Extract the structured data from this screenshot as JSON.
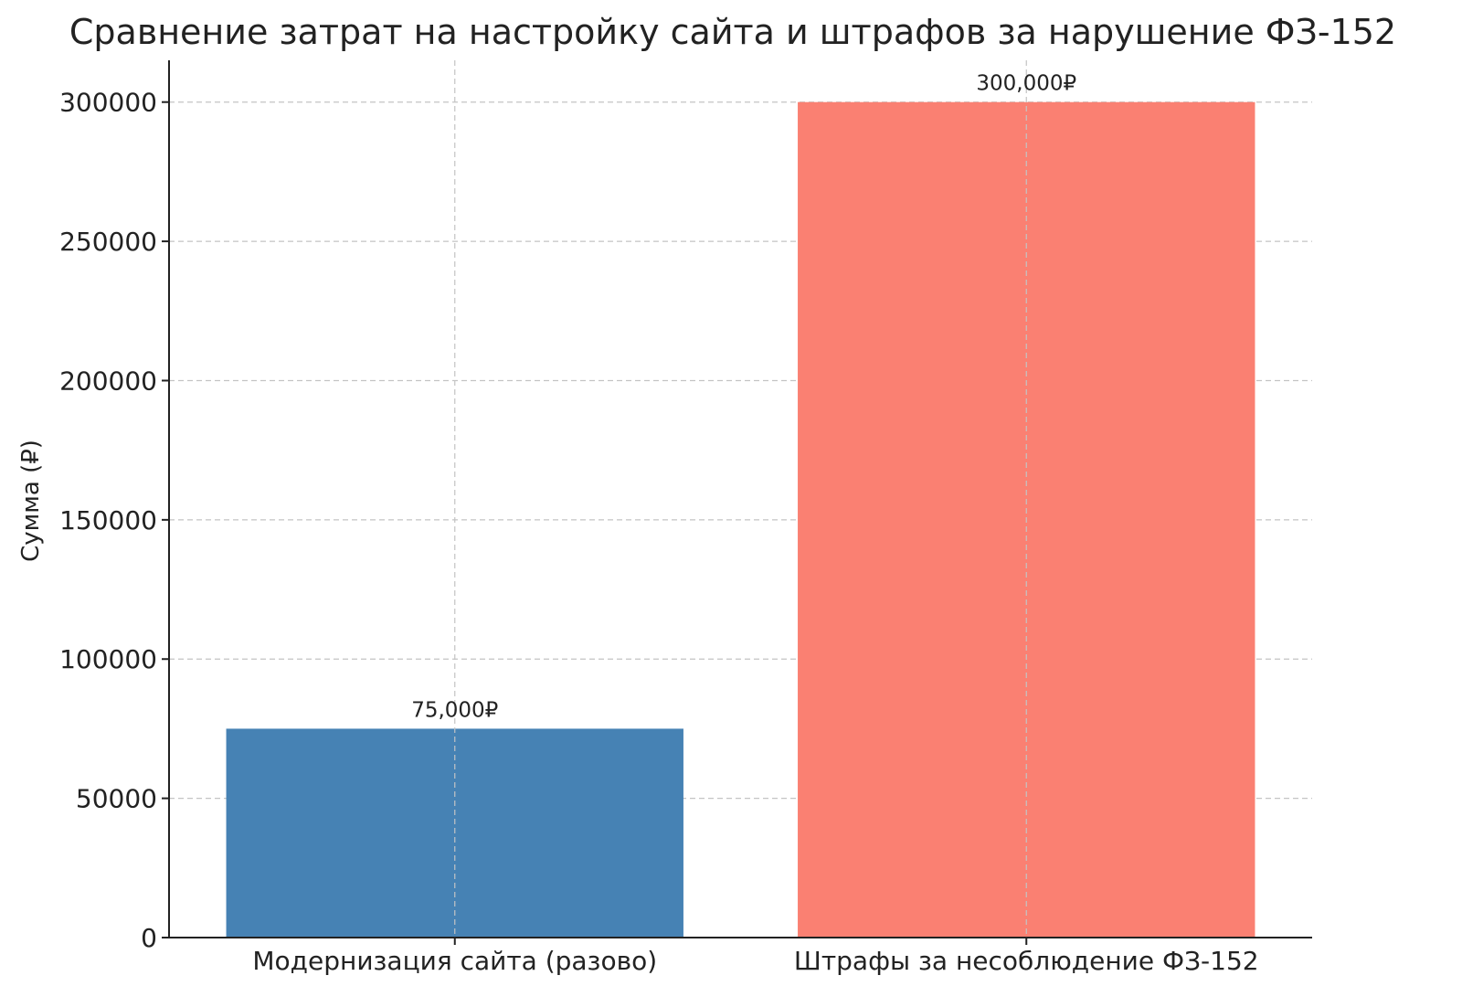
{
  "chart_data": {
    "type": "bar",
    "title": "Сравнение затрат на настройку сайта и штрафов за нарушение ФЗ-152",
    "xlabel": "",
    "ylabel": "Сумма (₽)",
    "categories": [
      "Модернизация сайта (разово)",
      "Штрафы за несоблюдение ФЗ-152"
    ],
    "values": [
      75000,
      300000
    ],
    "data_labels": [
      "75,000₽",
      "300,000₽"
    ],
    "colors": [
      "#4682b4",
      "#fa8072"
    ],
    "ylim": [
      0,
      315000
    ],
    "yticks": [
      0,
      50000,
      100000,
      150000,
      200000,
      250000,
      300000
    ],
    "ytick_labels": [
      "0",
      "50000",
      "100000",
      "150000",
      "200000",
      "250000",
      "300000"
    ],
    "grid": true,
    "legend": "none"
  }
}
